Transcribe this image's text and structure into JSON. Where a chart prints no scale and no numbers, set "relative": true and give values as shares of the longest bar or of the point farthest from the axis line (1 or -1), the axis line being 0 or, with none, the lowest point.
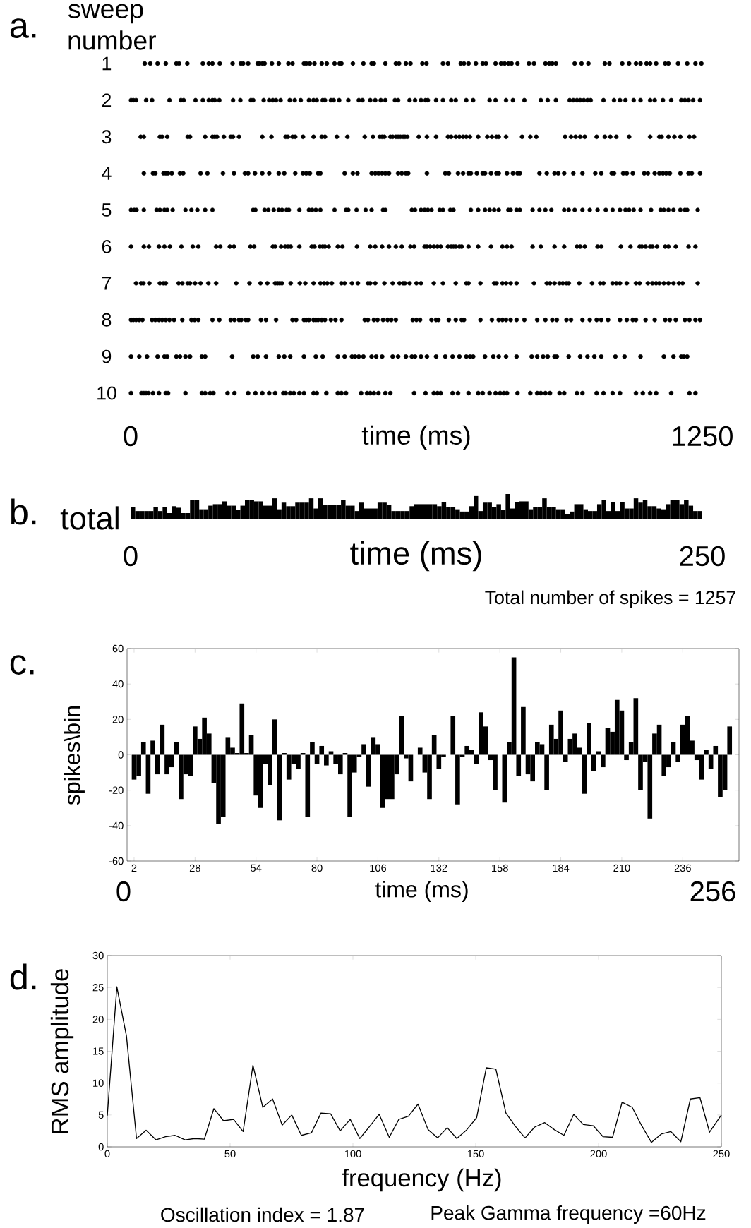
{
  "chart_data": [
    {
      "type": "scatter",
      "title": "a.",
      "ylabel": "sweep number",
      "xlabel": "time (ms)",
      "xlim": [
        0,
        1250
      ],
      "xticks": [
        0,
        1250
      ],
      "ylim": [
        10,
        1
      ],
      "yticks": [
        1,
        2,
        3,
        4,
        5,
        6,
        7,
        8,
        9,
        10
      ],
      "color": "#000000",
      "series": [
        {
          "x": [
            31,
            43,
            59,
            77,
            100,
            106,
            124,
            158,
            171,
            179,
            195,
            223,
            241,
            246,
            257,
            278,
            282,
            288,
            293,
            309,
            324,
            345,
            354,
            379,
            384,
            392,
            402,
            418,
            429,
            446,
            457,
            461,
            486,
            509,
            527,
            532,
            557,
            580,
            587,
            602,
            612,
            638,
            647,
            683,
            694,
            722,
            729,
            739,
            755,
            770,
            777,
            798,
            810,
            818,
            826,
            833,
            846,
            871,
            882,
            907,
            915,
            922,
            930,
            971,
            986,
            1001,
            1037,
            1047,
            1075,
            1090,
            1105,
            1115,
            1128,
            1136,
            1149,
            1169,
            1176,
            1197,
            1217,
            1235,
            1248
          ],
          "values": [
            1,
            1,
            1,
            1,
            1,
            1,
            1,
            1,
            1,
            1,
            1,
            1,
            1,
            1,
            1,
            1,
            1,
            1,
            1,
            1,
            1,
            1,
            1,
            1,
            1,
            1,
            1,
            1,
            1,
            1,
            1,
            1,
            1,
            1,
            1,
            1,
            1,
            1,
            1,
            1,
            1,
            1,
            1,
            1,
            1,
            1,
            1,
            1,
            1,
            1,
            1,
            1,
            1,
            1,
            1,
            1,
            1,
            1,
            1,
            1,
            1,
            1,
            1,
            1,
            1,
            1,
            1,
            1,
            1,
            1,
            1,
            1,
            1,
            1,
            1,
            1,
            1,
            1,
            1,
            1,
            1
          ]
        },
        {
          "x": [
            1,
            6,
            12,
            34,
            47,
            85,
            110,
            116,
            142,
            158,
            171,
            179,
            184,
            194,
            224,
            240,
            263,
            268,
            291,
            303,
            311,
            318,
            328,
            348,
            359,
            372,
            390,
            400,
            407,
            420,
            425,
            438,
            444,
            456,
            476,
            499,
            507,
            524,
            535,
            547,
            557,
            578,
            585,
            610,
            622,
            635,
            645,
            650,
            668,
            683,
            701,
            711,
            734,
            749,
            785,
            798,
            821,
            836,
            861,
            897,
            912,
            930,
            960,
            968,
            976,
            983,
            991,
            999,
            1006,
            1034,
            1057,
            1070,
            1082,
            1100,
            1115,
            1136,
            1146,
            1164,
            1182,
            1204,
            1212,
            1220,
            1230,
            1245
          ],
          "values": [
            2,
            2,
            2,
            2,
            2,
            2,
            2,
            2,
            2,
            2,
            2,
            2,
            2,
            2,
            2,
            2,
            2,
            2,
            2,
            2,
            2,
            2,
            2,
            2,
            2,
            2,
            2,
            2,
            2,
            2,
            2,
            2,
            2,
            2,
            2,
            2,
            2,
            2,
            2,
            2,
            2,
            2,
            2,
            2,
            2,
            2,
            2,
            2,
            2,
            2,
            2,
            2,
            2,
            2,
            2,
            2,
            2,
            2,
            2,
            2,
            2,
            2,
            2,
            2,
            2,
            2,
            2,
            2,
            2,
            2,
            2,
            2,
            2,
            2,
            2,
            2,
            2,
            2,
            2,
            2,
            2,
            2,
            2,
            2
          ]
        },
        {
          "x": [
            22,
            29,
            64,
            69,
            80,
            125,
            130,
            163,
            179,
            184,
            189,
            204,
            219,
            224,
            237,
            288,
            308,
            339,
            344,
            354,
            360,
            377,
            400,
            418,
            425,
            451,
            474,
            512,
            530,
            545,
            550,
            555,
            568,
            573,
            580,
            585,
            590,
            596,
            600,
            605,
            630,
            648,
            668,
            694,
            701,
            711,
            719,
            727,
            734,
            742,
            760,
            780,
            790,
            800,
            805,
            821,
            856,
            874,
            887,
            950,
            963,
            973,
            983,
            993,
            1019,
            1037,
            1049,
            1062,
            1090,
            1136,
            1156,
            1161,
            1176,
            1189,
            1202,
            1222,
            1232
          ],
          "values": [
            3,
            3,
            3,
            3,
            3,
            3,
            3,
            3,
            3,
            3,
            3,
            3,
            3,
            3,
            3,
            3,
            3,
            3,
            3,
            3,
            3,
            3,
            3,
            3,
            3,
            3,
            3,
            3,
            3,
            3,
            3,
            3,
            3,
            3,
            3,
            3,
            3,
            3,
            3,
            3,
            3,
            3,
            3,
            3,
            3,
            3,
            3,
            3,
            3,
            3,
            3,
            3,
            3,
            3,
            3,
            3,
            3,
            3,
            3,
            3,
            3,
            3,
            3,
            3,
            3,
            3,
            3,
            3,
            3,
            3,
            3,
            3,
            3,
            3,
            3,
            3,
            3
          ]
        },
        {
          "x": [
            29,
            49,
            54,
            72,
            77,
            82,
            90,
            108,
            115,
            153,
            168,
            202,
            226,
            250,
            257,
            272,
            288,
            303,
            324,
            336,
            360,
            377,
            384,
            392,
            410,
            415,
            468,
            486,
            496,
            527,
            535,
            542,
            550,
            557,
            565,
            585,
            593,
            602,
            607,
            648,
            688,
            696,
            716,
            727,
            739,
            744,
            757,
            770,
            775,
            788,
            800,
            805,
            823,
            836,
            846,
            851,
            894,
            910,
            927,
            935,
            948,
            968,
            988,
            1016,
            1029,
            1052,
            1057,
            1077,
            1085,
            1098,
            1123,
            1131,
            1146,
            1156,
            1164,
            1171,
            1179,
            1202,
            1220,
            1227,
            1245
          ],
          "values": [
            4,
            4,
            4,
            4,
            4,
            4,
            4,
            4,
            4,
            4,
            4,
            4,
            4,
            4,
            4,
            4,
            4,
            4,
            4,
            4,
            4,
            4,
            4,
            4,
            4,
            4,
            4,
            4,
            4,
            4,
            4,
            4,
            4,
            4,
            4,
            4,
            4,
            4,
            4,
            4,
            4,
            4,
            4,
            4,
            4,
            4,
            4,
            4,
            4,
            4,
            4,
            4,
            4,
            4,
            4,
            4,
            4,
            4,
            4,
            4,
            4,
            4,
            4,
            4,
            4,
            4,
            4,
            4,
            4,
            4,
            4,
            4,
            4,
            4,
            4,
            4,
            4,
            4,
            4,
            4,
            4
          ]
        },
        {
          "x": [
            1,
            8,
            13,
            29,
            57,
            64,
            74,
            80,
            92,
            120,
            133,
            146,
            163,
            179,
            268,
            273,
            293,
            301,
            313,
            324,
            331,
            341,
            346,
            369,
            390,
            397,
            405,
            415,
            446,
            471,
            476,
            494,
            514,
            527,
            552,
            557,
            615,
            622,
            635,
            643,
            650,
            658,
            676,
            683,
            699,
            706,
            744,
            760,
            775,
            785,
            795,
            805,
            826,
            831,
            844,
            851,
            879,
            894,
            907,
            920,
            948,
            958,
            971,
            988,
            1004,
            1021,
            1039,
            1054,
            1070,
            1082,
            1090,
            1100,
            1115,
            1138,
            1159,
            1166,
            1176,
            1187,
            1202,
            1212,
            1217,
            1240
          ],
          "values": [
            5,
            5,
            5,
            5,
            5,
            5,
            5,
            5,
            5,
            5,
            5,
            5,
            5,
            5,
            5,
            5,
            5,
            5,
            5,
            5,
            5,
            5,
            5,
            5,
            5,
            5,
            5,
            5,
            5,
            5,
            5,
            5,
            5,
            5,
            5,
            5,
            5,
            5,
            5,
            5,
            5,
            5,
            5,
            5,
            5,
            5,
            5,
            5,
            5,
            5,
            5,
            5,
            5,
            5,
            5,
            5,
            5,
            5,
            5,
            5,
            5,
            5,
            5,
            5,
            5,
            5,
            5,
            5,
            5,
            5,
            5,
            5,
            5,
            5,
            5,
            5,
            5,
            5,
            5,
            5,
            5,
            5
          ]
        },
        {
          "x": [
            1,
            29,
            40,
            62,
            74,
            86,
            111,
            136,
            148,
            187,
            196,
            217,
            226,
            262,
            270,
            311,
            316,
            329,
            338,
            344,
            350,
            369,
            396,
            402,
            414,
            420,
            425,
            433,
            453,
            463,
            495,
            524,
            535,
            550,
            565,
            580,
            593,
            612,
            620,
            643,
            648,
            655,
            663,
            671,
            678,
            694,
            701,
            706,
            711,
            719,
            724,
            739,
            760,
            788,
            813,
            823,
            833,
            879,
            897,
            927,
            948,
            976,
            983,
            993,
            1021,
            1029,
            1072,
            1093,
            1113,
            1118,
            1126,
            1136,
            1141,
            1151,
            1169,
            1176,
            1192,
            1220,
            1235
          ],
          "values": [
            6,
            6,
            6,
            6,
            6,
            6,
            6,
            6,
            6,
            6,
            6,
            6,
            6,
            6,
            6,
            6,
            6,
            6,
            6,
            6,
            6,
            6,
            6,
            6,
            6,
            6,
            6,
            6,
            6,
            6,
            6,
            6,
            6,
            6,
            6,
            6,
            6,
            6,
            6,
            6,
            6,
            6,
            6,
            6,
            6,
            6,
            6,
            6,
            6,
            6,
            6,
            6,
            6,
            6,
            6,
            6,
            6,
            6,
            6,
            6,
            6,
            6,
            6,
            6,
            6,
            6,
            6,
            6,
            6,
            6,
            6,
            6,
            6,
            6,
            6,
            6,
            6,
            6,
            6
          ]
        },
        {
          "x": [
            12,
            23,
            28,
            41,
            64,
            72,
            77,
            105,
            113,
            125,
            130,
            141,
            153,
            170,
            187,
            231,
            260,
            284,
            299,
            316,
            321,
            326,
            331,
            350,
            370,
            382,
            400,
            415,
            423,
            430,
            440,
            461,
            468,
            484,
            497,
            519,
            524,
            535,
            555,
            573,
            588,
            596,
            600,
            610,
            625,
            635,
            663,
            683,
            711,
            734,
            739,
            765,
            795,
            800,
            813,
            821,
            831,
            844,
            882,
            910,
            917,
            927,
            938,
            945,
            953,
            958,
            981,
            1009,
            1027,
            1034,
            1054,
            1062,
            1070,
            1085,
            1105,
            1113,
            1131,
            1141,
            1149,
            1156,
            1166,
            1176,
            1187,
            1199,
            1207,
            1240
          ],
          "values": [
            7,
            7,
            7,
            7,
            7,
            7,
            7,
            7,
            7,
            7,
            7,
            7,
            7,
            7,
            7,
            7,
            7,
            7,
            7,
            7,
            7,
            7,
            7,
            7,
            7,
            7,
            7,
            7,
            7,
            7,
            7,
            7,
            7,
            7,
            7,
            7,
            7,
            7,
            7,
            7,
            7,
            7,
            7,
            7,
            7,
            7,
            7,
            7,
            7,
            7,
            7,
            7,
            7,
            7,
            7,
            7,
            7,
            7,
            7,
            7,
            7,
            7,
            7,
            7,
            7,
            7,
            7,
            7,
            7,
            7,
            7,
            7,
            7,
            7,
            7,
            7,
            7,
            7,
            7,
            7,
            7,
            7,
            7,
            7,
            7,
            7
          ]
        },
        {
          "x": [
            1,
            6,
            12,
            19,
            26,
            47,
            54,
            62,
            69,
            77,
            85,
            95,
            113,
            133,
            140,
            148,
            179,
            194,
            219,
            227,
            237,
            242,
            252,
            257,
            285,
            296,
            318,
            354,
            362,
            379,
            384,
            390,
            400,
            405,
            410,
            418,
            425,
            438,
            448,
            461,
            512,
            519,
            532,
            540,
            552,
            562,
            570,
            580,
            617,
            625,
            633,
            658,
            668,
            673,
            696,
            711,
            724,
            729,
            765,
            790,
            805,
            813,
            821,
            831,
            844,
            861,
            889,
            907,
            922,
            932,
            953,
            963,
            988,
            1004,
            1019,
            1029,
            1044,
            1070,
            1085,
            1098,
            1105,
            1126,
            1146,
            1169,
            1179,
            1192,
            1212,
            1222,
            1235,
            1245
          ],
          "values": [
            8,
            8,
            8,
            8,
            8,
            8,
            8,
            8,
            8,
            8,
            8,
            8,
            8,
            8,
            8,
            8,
            8,
            8,
            8,
            8,
            8,
            8,
            8,
            8,
            8,
            8,
            8,
            8,
            8,
            8,
            8,
            8,
            8,
            8,
            8,
            8,
            8,
            8,
            8,
            8,
            8,
            8,
            8,
            8,
            8,
            8,
            8,
            8,
            8,
            8,
            8,
            8,
            8,
            8,
            8,
            8,
            8,
            8,
            8,
            8,
            8,
            8,
            8,
            8,
            8,
            8,
            8,
            8,
            8,
            8,
            8,
            8,
            8,
            8,
            8,
            8,
            8,
            8,
            8,
            8,
            8,
            8,
            8,
            8,
            8,
            8,
            8,
            8,
            8,
            8
          ]
        },
        {
          "x": [
            1,
            19,
            36,
            59,
            74,
            80,
            100,
            108,
            120,
            130,
            156,
            163,
            222,
            268,
            278,
            296,
            324,
            336,
            349,
            379,
            405,
            420,
            453,
            468,
            484,
            491,
            499,
            509,
            527,
            537,
            550,
            573,
            585,
            602,
            615,
            622,
            635,
            648,
            668,
            688,
            704,
            719,
            734,
            742,
            749,
            775,
            793,
            805,
            821,
            844,
            877,
            889,
            902,
            912,
            927,
            932,
            958,
            983,
            999,
            1014,
            1029,
            1060,
            1080,
            1115,
            1166,
            1187,
            1204,
            1210,
            1217
          ],
          "values": [
            9,
            9,
            9,
            9,
            9,
            9,
            9,
            9,
            9,
            9,
            9,
            9,
            9,
            9,
            9,
            9,
            9,
            9,
            9,
            9,
            9,
            9,
            9,
            9,
            9,
            9,
            9,
            9,
            9,
            9,
            9,
            9,
            9,
            9,
            9,
            9,
            9,
            9,
            9,
            9,
            9,
            9,
            9,
            9,
            9,
            9,
            9,
            9,
            9,
            9,
            9,
            9,
            9,
            9,
            9,
            9,
            9,
            9,
            9,
            9,
            9,
            9,
            9,
            9,
            9,
            9,
            9,
            9,
            9
          ]
        },
        {
          "x": [
            1,
            24,
            29,
            34,
            39,
            49,
            62,
            77,
            82,
            120,
            156,
            163,
            174,
            181,
            212,
            227,
            257,
            273,
            288,
            303,
            316,
            334,
            339,
            349,
            357,
            369,
            379,
            400,
            407,
            428,
            453,
            461,
            471,
            504,
            517,
            524,
            532,
            542,
            557,
            568,
            620,
            645,
            663,
            671,
            678,
            704,
            716,
            739,
            760,
            770,
            785,
            798,
            808,
            816,
            823,
            846,
            874,
            889,
            897,
            907,
            917,
            938,
            948,
            976,
            988,
            1019,
            1034,
            1054,
            1070,
            1105,
            1120,
            1136,
            1149,
            1182,
            1222,
            1235
          ],
          "values": [
            10,
            10,
            10,
            10,
            10,
            10,
            10,
            10,
            10,
            10,
            10,
            10,
            10,
            10,
            10,
            10,
            10,
            10,
            10,
            10,
            10,
            10,
            10,
            10,
            10,
            10,
            10,
            10,
            10,
            10,
            10,
            10,
            10,
            10,
            10,
            10,
            10,
            10,
            10,
            10,
            10,
            10,
            10,
            10,
            10,
            10,
            10,
            10,
            10,
            10,
            10,
            10,
            10,
            10,
            10,
            10,
            10,
            10,
            10,
            10,
            10,
            10,
            10,
            10,
            10,
            10,
            10,
            10,
            10,
            10,
            10,
            10,
            10,
            10,
            10,
            10
          ]
        }
      ]
    },
    {
      "type": "bar",
      "title": "b.",
      "ylabel": "total",
      "xlabel": "time (ms)",
      "relative": true,
      "xlim": [
        0,
        250
      ],
      "xticks": [
        0,
        250
      ],
      "color": "#000000",
      "x": [
        1,
        3,
        5,
        7,
        9,
        11,
        13,
        15,
        17,
        19,
        21,
        23,
        25,
        27,
        29,
        31,
        33,
        35,
        37,
        39,
        41,
        43,
        45,
        47,
        49,
        51,
        53,
        55,
        57,
        59,
        61,
        63,
        65,
        67,
        69,
        71,
        73,
        75,
        77,
        79,
        81,
        83,
        85,
        87,
        89,
        91,
        93,
        95,
        97,
        99,
        101,
        103,
        105,
        107,
        109,
        111,
        113,
        115,
        117,
        119,
        121,
        123,
        125,
        127,
        129,
        131,
        133,
        135,
        137,
        139,
        141,
        143,
        145,
        147,
        149,
        151,
        153,
        155,
        157,
        159,
        161,
        163,
        165,
        167,
        169,
        171,
        173,
        175,
        177,
        179,
        181,
        183,
        185,
        187,
        189,
        191,
        193,
        195,
        197,
        199,
        201,
        203,
        205,
        207,
        209,
        211,
        213,
        215,
        217,
        219,
        221,
        223,
        225,
        227,
        229,
        231,
        233,
        235,
        237,
        239,
        241,
        243,
        245,
        247,
        249
      ],
      "values": [
        0.48,
        0.33,
        0.33,
        0.33,
        0.33,
        0.48,
        0.33,
        0.48,
        0.25,
        0.52,
        0.46,
        0.25,
        0.25,
        0.75,
        0.75,
        0.4,
        0.4,
        0.54,
        0.6,
        0.6,
        0.71,
        0.54,
        0.54,
        0.37,
        0.54,
        0.75,
        0.75,
        0.71,
        0.71,
        0.54,
        0.54,
        0.83,
        0.4,
        0.66,
        0.52,
        0.52,
        0.66,
        0.66,
        0.66,
        0.83,
        0.43,
        0.83,
        0.56,
        0.56,
        0.56,
        0.56,
        0.75,
        0.54,
        0.54,
        0.33,
        0.66,
        0.43,
        0.43,
        0.43,
        0.66,
        0.66,
        0.56,
        0.33,
        0.33,
        0.33,
        0.33,
        0.52,
        0.6,
        0.6,
        0.6,
        0.6,
        0.6,
        0.52,
        0.68,
        0.48,
        0.48,
        0.4,
        0.31,
        0.31,
        0.52,
        0.92,
        0.33,
        0.66,
        0.66,
        0.48,
        0.6,
        0.37,
        1,
        0.43,
        0.68,
        0.71,
        0.71,
        0.4,
        0.48,
        0.48,
        0.83,
        0.48,
        0.48,
        0.4,
        0.4,
        0.2,
        0.31,
        0.6,
        0.6,
        0.4,
        0.33,
        0.33,
        0.6,
        0.77,
        0.33,
        0.68,
        0.33,
        0.68,
        0.43,
        0.43,
        0.83,
        0.66,
        0.75,
        0.52,
        0.52,
        0.43,
        0.4,
        0.6,
        0.75,
        0.75,
        0.6,
        0.75,
        0.54,
        0.33,
        0.33
      ],
      "annotations": [
        "Total number of spikes = 1257"
      ]
    },
    {
      "type": "bar",
      "title": "c.",
      "ylabel": "spikes\\bin",
      "xlabel": "time (ms)",
      "xlim": [
        -1,
        260
      ],
      "xticks": [
        2,
        28,
        54,
        80,
        106,
        132,
        158,
        184,
        210,
        236
      ],
      "ylim": [
        -60,
        60
      ],
      "yticks": [
        -60,
        -40,
        -20,
        0,
        20,
        40,
        60
      ],
      "color": "#000000",
      "x": [
        2,
        4,
        6,
        8,
        10,
        12,
        14,
        16,
        18,
        20,
        22,
        24,
        26,
        28,
        30,
        32,
        34,
        36,
        38,
        40,
        42,
        44,
        46,
        48,
        50,
        52,
        54,
        56,
        58,
        60,
        62,
        64,
        66,
        68,
        70,
        72,
        74,
        76,
        78,
        80,
        82,
        84,
        86,
        88,
        90,
        92,
        94,
        96,
        98,
        100,
        102,
        104,
        106,
        108,
        110,
        112,
        114,
        116,
        118,
        120,
        122,
        124,
        126,
        128,
        130,
        132,
        134,
        136,
        138,
        140,
        142,
        144,
        146,
        148,
        150,
        152,
        154,
        156,
        158,
        160,
        162,
        164,
        166,
        168,
        170,
        172,
        174,
        176,
        178,
        180,
        182,
        184,
        186,
        188,
        190,
        192,
        194,
        196,
        198,
        200,
        202,
        204,
        206,
        208,
        210,
        212,
        214,
        216,
        218,
        220,
        222,
        224,
        226,
        228,
        230,
        232,
        234,
        236,
        238,
        240,
        242,
        244,
        246,
        248,
        250,
        252,
        254,
        256
      ],
      "values": [
        -14,
        -12,
        7,
        -22,
        8,
        -11,
        17,
        -11,
        -7,
        7,
        -25,
        -11,
        -12,
        16,
        9,
        21,
        12,
        -16,
        -39,
        -35,
        10,
        4,
        1,
        29,
        1,
        11,
        -23,
        -30,
        -5,
        -17,
        20,
        -37,
        1,
        -14,
        -5,
        -8,
        1,
        -35,
        7,
        -5,
        5,
        -6,
        2,
        -5,
        -11,
        1,
        -35,
        -10,
        -1,
        6,
        -18,
        10,
        6,
        -30,
        -25,
        -25,
        -11,
        22,
        -2,
        -15,
        0,
        4,
        -10,
        -25,
        11,
        -8,
        -1,
        0,
        22,
        -28,
        -1,
        5,
        3,
        -5,
        24,
        16,
        -3,
        -20,
        0,
        -27,
        7,
        55,
        -12,
        27,
        -11,
        -15,
        7,
        6,
        -20,
        17,
        9,
        25,
        -4,
        9,
        12,
        4,
        -22,
        18,
        -9,
        2,
        -7,
        15,
        13,
        31,
        25,
        -3,
        7,
        32,
        -20,
        -4,
        -36,
        12,
        17,
        -12,
        -7,
        7,
        -4,
        17,
        22,
        8,
        -3,
        -14,
        3,
        -8,
        5,
        -24,
        -20,
        16
      ],
      "annotations": [
        "0",
        "256"
      ]
    },
    {
      "type": "line",
      "title": "d.",
      "ylabel": "RMS amplitude",
      "xlabel": "frequency (Hz)",
      "xlim": [
        0,
        250
      ],
      "xticks": [
        0,
        50,
        100,
        150,
        200,
        250
      ],
      "ylim": [
        0,
        30
      ],
      "yticks": [
        0,
        5,
        10,
        15,
        20,
        25,
        30
      ],
      "color": "#000000",
      "x": [
        0,
        3.9,
        7.8,
        11.9,
        15.8,
        19.8,
        23.7,
        27.6,
        31.7,
        35.6,
        39.5,
        43.4,
        47.3,
        51.4,
        55.3,
        59.3,
        63.3,
        67.3,
        71.2,
        75.1,
        79.0,
        83.1,
        87.0,
        90.9,
        94.8,
        98.9,
        102.8,
        106.8,
        110.7,
        114.8,
        118.7,
        122.6,
        126.5,
        130.6,
        134.5,
        138.4,
        142.3,
        146.4,
        150.4,
        154.3,
        158.2,
        162.3,
        166.2,
        170.1,
        174.0,
        178.1,
        182.0,
        185.9,
        189.9,
        193.8,
        197.9,
        201.8,
        205.7,
        209.6,
        213.7,
        217.6,
        221.5,
        225.5,
        229.4,
        233.5,
        237.4,
        241.3,
        245.2,
        250
      ],
      "values": [
        4.9,
        25.1,
        17.4,
        1.3,
        2.6,
        1.1,
        1.6,
        1.8,
        1.1,
        1.3,
        1.2,
        6.0,
        4.1,
        4.3,
        2.4,
        12.8,
        6.2,
        7.5,
        3.4,
        5.0,
        1.8,
        2.2,
        5.3,
        5.2,
        2.5,
        4.3,
        1.3,
        3.2,
        5.1,
        1.5,
        4.3,
        4.8,
        6.7,
        2.7,
        1.4,
        3.0,
        1.3,
        2.7,
        4.6,
        12.4,
        12.2,
        5.3,
        3.2,
        1.4,
        3.1,
        3.8,
        2.7,
        1.8,
        5.1,
        3.5,
        3.3,
        1.6,
        1.5,
        7.0,
        6.2,
        3.3,
        0.7,
        2.0,
        2.4,
        0.8,
        7.5,
        7.7,
        2.3,
        5.0
      ],
      "annotations": [
        "Oscillation index = 1.87",
        "Peak Gamma frequency =60Hz"
      ]
    }
  ]
}
